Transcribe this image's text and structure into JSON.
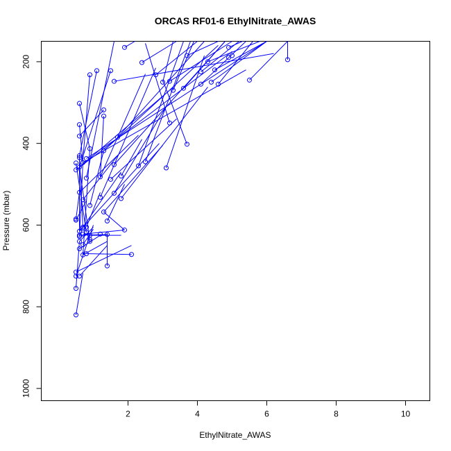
{
  "chart_data": {
    "type": "scatter",
    "title": "ORCAS RF01-6 EthylNitrate_AWAS",
    "xlabel": "EthylNitrate_AWAS",
    "ylabel": "Pressure (mbar)",
    "xlim": [
      -0.5,
      10.7
    ],
    "ylim": [
      1030,
      150
    ],
    "y_reversed": true,
    "x_ticks": [
      2,
      4,
      6,
      8,
      10
    ],
    "y_ticks": [
      200,
      400,
      600,
      800,
      1000
    ],
    "series_color": "#0000ff",
    "marker": "open-circle",
    "points": [
      [
        1.9,
        165
      ],
      [
        2.4,
        202
      ],
      [
        3.7,
        185
      ],
      [
        4.3,
        200
      ],
      [
        4.1,
        225
      ],
      [
        4.5,
        220
      ],
      [
        4.9,
        165
      ],
      [
        5.0,
        185
      ],
      [
        6.6,
        195
      ],
      [
        4.9,
        190
      ],
      [
        2.8,
        232
      ],
      [
        3.2,
        248
      ],
      [
        3.0,
        250
      ],
      [
        3.6,
        265
      ],
      [
        3.3,
        270
      ],
      [
        4.1,
        255
      ],
      [
        4.4,
        250
      ],
      [
        4.6,
        255
      ],
      [
        5.5,
        245
      ],
      [
        1.1,
        222
      ],
      [
        1.5,
        222
      ],
      [
        0.9,
        232
      ],
      [
        1.6,
        248
      ],
      [
        0.6,
        302
      ],
      [
        1.3,
        318
      ],
      [
        1.3,
        333
      ],
      [
        0.6,
        354
      ],
      [
        0.6,
        382
      ],
      [
        3.2,
        350
      ],
      [
        1.7,
        385
      ],
      [
        3.7,
        402
      ],
      [
        1.3,
        418
      ],
      [
        0.9,
        413
      ],
      [
        0.6,
        430
      ],
      [
        0.6,
        435
      ],
      [
        0.8,
        437
      ],
      [
        0.5,
        448
      ],
      [
        0.7,
        447
      ],
      [
        0.6,
        458
      ],
      [
        0.5,
        465
      ],
      [
        1.6,
        452
      ],
      [
        2.3,
        455
      ],
      [
        2.5,
        445
      ],
      [
        3.1,
        460
      ],
      [
        0.8,
        485
      ],
      [
        1.2,
        482
      ],
      [
        1.5,
        488
      ],
      [
        1.8,
        480
      ],
      [
        0.6,
        520
      ],
      [
        1.6,
        522
      ],
      [
        0.7,
        538
      ],
      [
        1.8,
        535
      ],
      [
        1.2,
        532
      ],
      [
        0.9,
        552
      ],
      [
        1.3,
        568
      ],
      [
        0.5,
        585
      ],
      [
        0.5,
        588
      ],
      [
        1.4,
        590
      ],
      [
        1.9,
        612
      ],
      [
        0.7,
        605
      ],
      [
        0.8,
        605
      ],
      [
        0.7,
        608
      ],
      [
        0.6,
        615
      ],
      [
        0.8,
        618
      ],
      [
        0.6,
        625
      ],
      [
        0.6,
        628
      ],
      [
        0.7,
        622
      ],
      [
        0.9,
        625
      ],
      [
        1.2,
        622
      ],
      [
        1.4,
        623
      ],
      [
        0.9,
        635
      ],
      [
        0.6,
        640
      ],
      [
        0.9,
        640
      ],
      [
        0.7,
        648
      ],
      [
        0.6,
        658
      ],
      [
        0.8,
        670
      ],
      [
        0.7,
        673
      ],
      [
        2.1,
        672
      ],
      [
        1.4,
        700
      ],
      [
        0.5,
        715
      ],
      [
        0.5,
        725
      ],
      [
        0.6,
        725
      ],
      [
        0.5,
        755
      ],
      [
        0.5,
        820
      ]
    ],
    "segments": [
      [
        [
          1.9,
          165
        ],
        [
          2.2,
          145
        ]
      ],
      [
        [
          2.4,
          202
        ],
        [
          3.4,
          145
        ]
      ],
      [
        [
          3.7,
          185
        ],
        [
          4.6,
          145
        ]
      ],
      [
        [
          4.3,
          200
        ],
        [
          5.8,
          145
        ]
      ],
      [
        [
          4.1,
          225
        ],
        [
          5.2,
          145
        ]
      ],
      [
        [
          4.5,
          220
        ],
        [
          6.0,
          145
        ]
      ],
      [
        [
          4.9,
          165
        ],
        [
          5.3,
          145
        ]
      ],
      [
        [
          6.6,
          195
        ],
        [
          6.6,
          145
        ]
      ],
      [
        [
          2.8,
          232
        ],
        [
          4.0,
          145
        ]
      ],
      [
        [
          3.2,
          248
        ],
        [
          5.0,
          145
        ]
      ],
      [
        [
          3.0,
          250
        ],
        [
          3.3,
          145
        ]
      ],
      [
        [
          3.6,
          265
        ],
        [
          4.8,
          145
        ]
      ],
      [
        [
          3.3,
          270
        ],
        [
          3.9,
          145
        ]
      ],
      [
        [
          4.1,
          255
        ],
        [
          5.4,
          145
        ]
      ],
      [
        [
          4.4,
          250
        ],
        [
          6.0,
          145
        ]
      ],
      [
        [
          4.6,
          255
        ],
        [
          5.6,
          145
        ]
      ],
      [
        [
          5.5,
          245
        ],
        [
          6.6,
          145
        ]
      ],
      [
        [
          1.6,
          248
        ],
        [
          6.2,
          180
        ]
      ],
      [
        [
          1.1,
          222
        ],
        [
          0.6,
          430
        ]
      ],
      [
        [
          1.5,
          222
        ],
        [
          0.6,
          458
        ]
      ],
      [
        [
          0.9,
          232
        ],
        [
          0.7,
          440
        ]
      ],
      [
        [
          0.6,
          302
        ],
        [
          0.9,
          413
        ]
      ],
      [
        [
          1.3,
          318
        ],
        [
          0.6,
          382
        ]
      ],
      [
        [
          0.6,
          354
        ],
        [
          0.7,
          447
        ]
      ],
      [
        [
          1.3,
          333
        ],
        [
          1.2,
          482
        ]
      ],
      [
        [
          3.2,
          350
        ],
        [
          2.5,
          155
        ]
      ],
      [
        [
          3.7,
          402
        ],
        [
          3.0,
          245
        ]
      ],
      [
        [
          1.7,
          385
        ],
        [
          4.2,
          150
        ]
      ],
      [
        [
          1.3,
          418
        ],
        [
          4.6,
          160
        ]
      ],
      [
        [
          0.8,
          437
        ],
        [
          6.0,
          145
        ]
      ],
      [
        [
          0.7,
          447
        ],
        [
          5.4,
          220
        ]
      ],
      [
        [
          0.6,
          458
        ],
        [
          3.2,
          270
        ]
      ],
      [
        [
          0.5,
          465
        ],
        [
          5.0,
          175
        ]
      ],
      [
        [
          1.6,
          452
        ],
        [
          4.8,
          150
        ]
      ],
      [
        [
          2.3,
          455
        ],
        [
          3.6,
          150
        ]
      ],
      [
        [
          2.5,
          445
        ],
        [
          3.8,
          145
        ]
      ],
      [
        [
          3.1,
          460
        ],
        [
          4.2,
          185
        ]
      ],
      [
        [
          1.8,
          480
        ],
        [
          2.4,
          390
        ]
      ],
      [
        [
          1.5,
          488
        ],
        [
          3.4,
          340
        ]
      ],
      [
        [
          1.2,
          482
        ],
        [
          2.5,
          230
        ]
      ],
      [
        [
          0.8,
          485
        ],
        [
          1.6,
          145
        ]
      ],
      [
        [
          0.6,
          520
        ],
        [
          2.3,
          380
        ]
      ],
      [
        [
          1.6,
          522
        ],
        [
          3.1,
          310
        ]
      ],
      [
        [
          1.8,
          535
        ],
        [
          4.3,
          262
        ]
      ],
      [
        [
          1.2,
          532
        ],
        [
          2.8,
          215
        ]
      ],
      [
        [
          0.7,
          538
        ],
        [
          1.7,
          430
        ]
      ],
      [
        [
          0.9,
          552
        ],
        [
          1.3,
          418
        ]
      ],
      [
        [
          1.3,
          568
        ],
        [
          3.0,
          405
        ]
      ],
      [
        [
          0.6,
          615
        ],
        [
          2.9,
          400
        ]
      ],
      [
        [
          0.7,
          605
        ],
        [
          1.8,
          470
        ]
      ],
      [
        [
          0.8,
          605
        ],
        [
          1.2,
          520
        ]
      ],
      [
        [
          1.4,
          590
        ],
        [
          1.9,
          500
        ]
      ],
      [
        [
          1.9,
          612
        ],
        [
          1.3,
          568
        ]
      ],
      [
        [
          0.6,
          625
        ],
        [
          1.4,
          623
        ]
      ],
      [
        [
          0.9,
          625
        ],
        [
          1.8,
          625
        ]
      ],
      [
        [
          0.7,
          622
        ],
        [
          1.9,
          612
        ]
      ],
      [
        [
          0.6,
          640
        ],
        [
          1.0,
          605
        ]
      ],
      [
        [
          0.7,
          648
        ],
        [
          1.0,
          610
        ]
      ],
      [
        [
          0.6,
          658
        ],
        [
          1.2,
          625
        ]
      ],
      [
        [
          0.8,
          670
        ],
        [
          2.1,
          672
        ]
      ],
      [
        [
          0.7,
          673
        ],
        [
          1.4,
          640
        ]
      ],
      [
        [
          0.6,
          725
        ],
        [
          1.4,
          650
        ]
      ],
      [
        [
          0.5,
          715
        ],
        [
          2.1,
          650
        ]
      ],
      [
        [
          0.5,
          725
        ],
        [
          1.0,
          600
        ]
      ],
      [
        [
          1.4,
          700
        ],
        [
          1.4,
          620
        ]
      ],
      [
        [
          0.5,
          755
        ],
        [
          0.6,
          640
        ]
      ],
      [
        [
          0.5,
          820
        ],
        [
          0.7,
          718
        ]
      ],
      [
        [
          0.5,
          585
        ],
        [
          0.6,
          520
        ]
      ],
      [
        [
          0.5,
          588
        ],
        [
          0.8,
          540
        ]
      ],
      [
        [
          0.6,
          430
        ],
        [
          0.6,
          615
        ]
      ],
      [
        [
          0.6,
          435
        ],
        [
          0.7,
          608
        ]
      ],
      [
        [
          0.9,
          413
        ],
        [
          0.7,
          673
        ]
      ],
      [
        [
          0.7,
          447
        ],
        [
          0.6,
          628
        ]
      ],
      [
        [
          0.6,
          458
        ],
        [
          0.9,
          640
        ]
      ],
      [
        [
          0.5,
          448
        ],
        [
          0.8,
          618
        ]
      ]
    ]
  }
}
